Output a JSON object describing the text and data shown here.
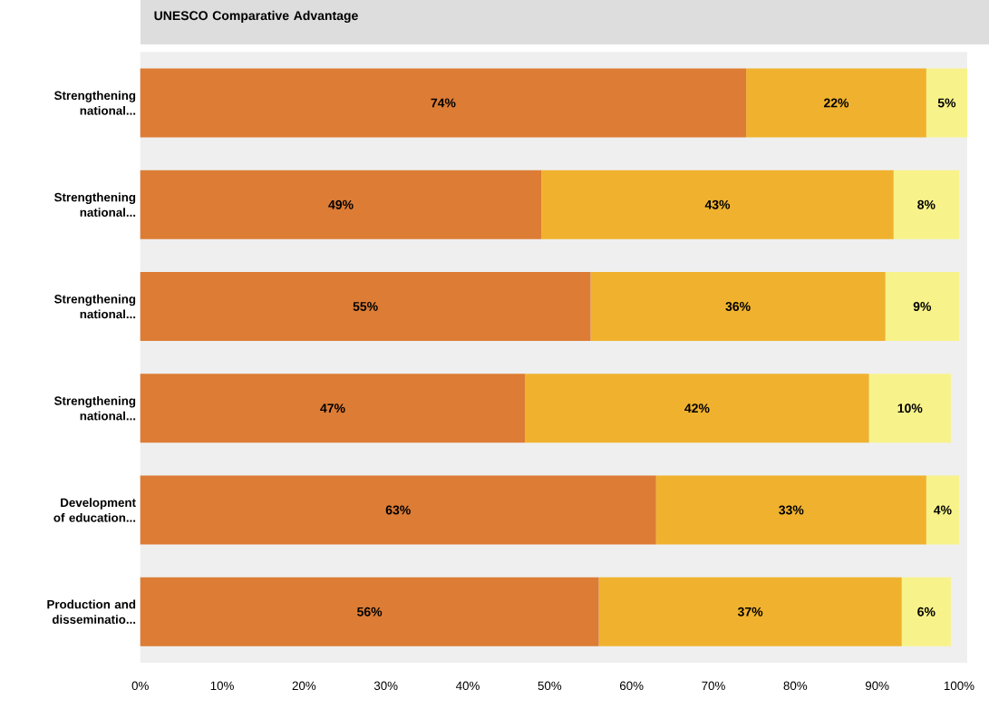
{
  "chart_data": {
    "type": "bar",
    "orientation": "horizontal",
    "stacked": true,
    "title": "UNESCO Comparative Advantage",
    "categories": [
      "Strengthening national...",
      "Strengthening national...",
      "Strengthening national...",
      "Strengthening national...",
      "Development of education...",
      "Production and disseminatio..."
    ],
    "series": [
      {
        "color": "#dd7c35",
        "values": [
          74,
          49,
          55,
          47,
          63,
          56
        ],
        "value_labels": [
          "74%",
          "49%",
          "55%",
          "47%",
          "63%",
          "56%"
        ]
      },
      {
        "color": "#f0b22e",
        "values": [
          22,
          43,
          36,
          42,
          33,
          37
        ],
        "value_labels": [
          "22%",
          "43%",
          "36%",
          "42%",
          "33%",
          "37%"
        ]
      },
      {
        "color": "#f7f38a",
        "values": [
          5,
          8,
          9,
          10,
          4,
          6
        ],
        "value_labels": [
          "5%",
          "8%",
          "9%",
          "10%",
          "4%",
          "6%"
        ]
      }
    ],
    "xlim": [
      0,
      101
    ],
    "xticks": [
      {
        "value": 0,
        "label": "0%"
      },
      {
        "value": 10,
        "label": "10%"
      },
      {
        "value": 20,
        "label": "20%"
      },
      {
        "value": 30,
        "label": "30%"
      },
      {
        "value": 40,
        "label": "40%"
      },
      {
        "value": 50,
        "label": "50%"
      },
      {
        "value": 60,
        "label": "60%"
      },
      {
        "value": 70,
        "label": "70%"
      },
      {
        "value": 80,
        "label": "80%"
      },
      {
        "value": 90,
        "label": "90%"
      },
      {
        "value": 100,
        "label": "100%"
      }
    ]
  }
}
